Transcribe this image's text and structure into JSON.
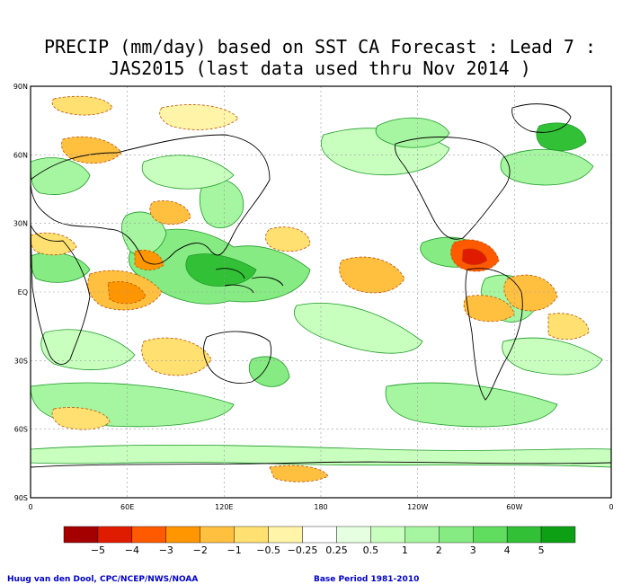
{
  "title": {
    "line1": "PRECIP (mm/day) based on SST CA Forecast : Lead 7 :",
    "line2": "JAS2015 (last data used thru Nov 2014 )"
  },
  "map": {
    "lat_labels": [
      "90N",
      "60N",
      "30N",
      "EQ",
      "30S",
      "60S",
      "90S"
    ],
    "lon_labels": [
      "0",
      "60E",
      "120E",
      "180",
      "120W",
      "60W",
      "0"
    ],
    "grid": true,
    "field_colors": {
      "land": "#ffffff",
      "coast": "#000000",
      "contour_wet": "#22a830",
      "contour_dry": "#c05000"
    }
  },
  "colorbar": {
    "colors": [
      "#a50000",
      "#e01c00",
      "#ff5a00",
      "#ff9600",
      "#ffc040",
      "#ffe070",
      "#fff4a8",
      "#ffffff",
      "#e6ffe0",
      "#c8ffbe",
      "#a6f5a0",
      "#86eb82",
      "#60dc5f",
      "#32c036",
      "#0ea014"
    ],
    "labels": [
      "−5",
      "−4",
      "−3",
      "−2",
      "−1",
      "−0.5",
      "−0.25",
      "0.25",
      "0.5",
      "1",
      "2",
      "3",
      "4",
      "5"
    ]
  },
  "credits": {
    "left": "Huug van den Dool, CPC/NCEP/NWS/NOAA",
    "right": "Base Period 1981-2010"
  }
}
